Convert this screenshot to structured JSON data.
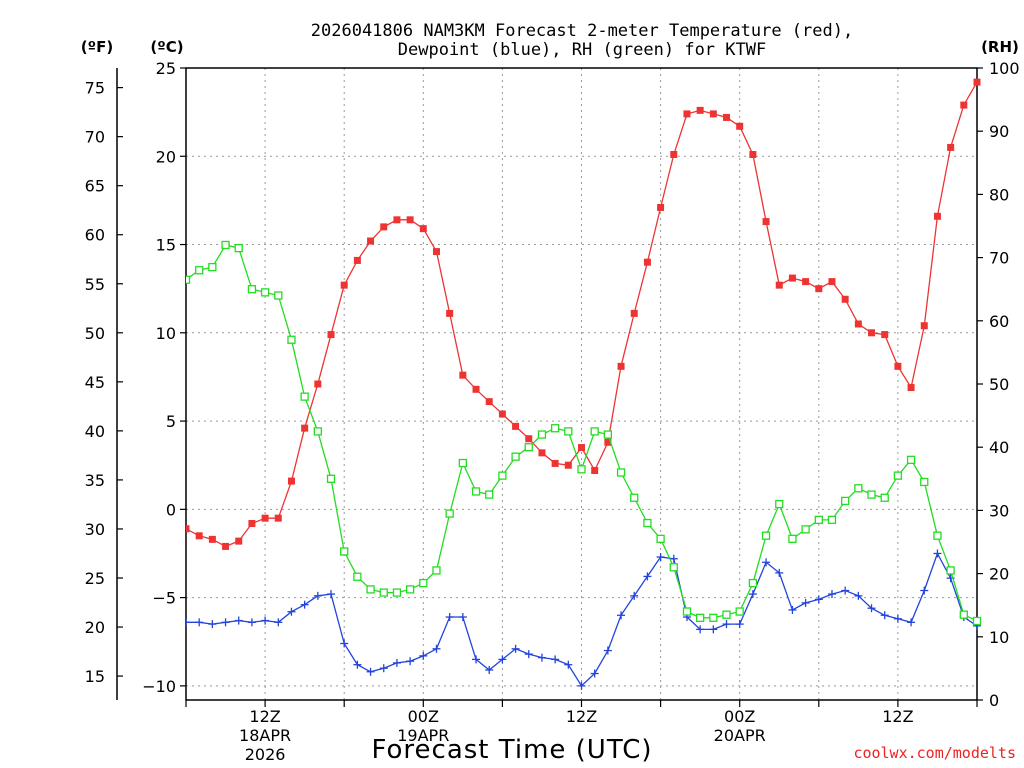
{
  "chart_data": {
    "type": "line",
    "title_line1": "2026041806 NAM3KM Forecast 2-meter Temperature (red),",
    "title_line2": "Dewpoint (blue), RH (green) for KTWF",
    "xlabel": "Forecast Time (UTC)",
    "left_outer_unit": "(ºF)",
    "left_inner_unit": "(ºC)",
    "right_unit": "(RH)",
    "credit": "coolwx.com/modelts",
    "hours": [
      6,
      7,
      8,
      9,
      10,
      11,
      12,
      13,
      14,
      15,
      16,
      17,
      18,
      19,
      20,
      21,
      22,
      23,
      24,
      25,
      26,
      27,
      28,
      29,
      30,
      31,
      32,
      33,
      34,
      35,
      36,
      37,
      38,
      39,
      40,
      41,
      42,
      43,
      44,
      45,
      46,
      47,
      48,
      49,
      50,
      51,
      52,
      53,
      54,
      55,
      56,
      57,
      58,
      59,
      60,
      61,
      62,
      63,
      64,
      65,
      66
    ],
    "xlim": [
      6,
      66
    ],
    "x_ticks": [
      {
        "hour": 12,
        "line1": "12Z",
        "line2": "18APR",
        "line3": "2026"
      },
      {
        "hour": 24,
        "line1": "00Z",
        "line2": "19APR",
        "line3": ""
      },
      {
        "hour": 36,
        "line1": "12Z",
        "line2": "",
        "line3": ""
      },
      {
        "hour": 48,
        "line1": "00Z",
        "line2": "20APR",
        "line3": ""
      },
      {
        "hour": 60,
        "line1": "12Z",
        "line2": "",
        "line3": ""
      }
    ],
    "celsius_axis": {
      "ylim": [
        -10.8,
        25
      ],
      "ticks": [
        "25",
        "20",
        "15",
        "10",
        "5",
        "0",
        "−5",
        "−10"
      ],
      "tick_values": [
        25,
        20,
        15,
        10,
        5,
        0,
        -5,
        -10
      ]
    },
    "fahrenheit_ticks": [
      "75",
      "70",
      "65",
      "60",
      "55",
      "50",
      "45",
      "40",
      "35",
      "30",
      "25",
      "20",
      "15"
    ],
    "fahrenheit_values": [
      75,
      70,
      65,
      60,
      55,
      50,
      45,
      40,
      35,
      30,
      25,
      20,
      15
    ],
    "rh_axis": {
      "ylim": [
        0,
        100
      ],
      "ticks": [
        "100",
        "90",
        "80",
        "70",
        "60",
        "50",
        "40",
        "30",
        "20",
        "10",
        "0"
      ],
      "tick_values": [
        100,
        90,
        80,
        70,
        60,
        50,
        40,
        30,
        20,
        10,
        0
      ]
    },
    "series": [
      {
        "name": "Temperature",
        "color": "#ee3333",
        "axis": "celsius",
        "marker": "filled-square",
        "values": [
          -1.1,
          -1.5,
          -1.7,
          -2.1,
          -1.8,
          -0.8,
          -0.5,
          -0.5,
          1.6,
          4.6,
          7.1,
          9.9,
          12.7,
          14.1,
          15.2,
          16.0,
          16.4,
          16.4,
          15.9,
          14.6,
          11.1,
          7.6,
          6.8,
          6.1,
          5.4,
          4.7,
          4.0,
          3.2,
          2.6,
          2.5,
          3.5,
          2.2,
          3.8,
          8.1,
          11.1,
          14.0,
          17.1,
          20.1,
          22.4,
          22.6,
          22.4,
          22.2,
          21.7,
          20.1,
          16.3,
          12.7,
          13.1,
          12.9,
          12.5,
          12.9,
          11.9,
          10.5,
          10.0,
          9.9,
          8.1,
          6.9,
          10.4,
          16.6,
          20.5,
          22.9,
          24.2
        ]
      },
      {
        "name": "Dewpoint",
        "color": "#2244dd",
        "axis": "celsius",
        "marker": "plus",
        "values": [
          -6.4,
          -6.4,
          -6.5,
          -6.4,
          -6.3,
          -6.4,
          -6.3,
          -6.4,
          -5.8,
          -5.4,
          -4.9,
          -4.8,
          -7.6,
          -8.8,
          -9.2,
          -9.0,
          -8.7,
          -8.6,
          -8.3,
          -7.9,
          -6.1,
          -6.1,
          -8.5,
          -9.1,
          -8.5,
          -7.9,
          -8.2,
          -8.4,
          -8.5,
          -8.8,
          -10.0,
          -9.3,
          -8.0,
          -6.0,
          -4.9,
          -3.8,
          -2.7,
          -2.8,
          -6.1,
          -6.8,
          -6.8,
          -6.5,
          -6.5,
          -4.8,
          -3.0,
          -3.6,
          -5.7,
          -5.3,
          -5.1,
          -4.8,
          -4.6,
          -4.9,
          -5.6,
          -6.0,
          -6.2,
          -6.4,
          -4.6,
          -2.5,
          -3.9,
          -6.1,
          -6.6
        ]
      },
      {
        "name": "RH",
        "color": "#22dd22",
        "axis": "rh",
        "marker": "open-square",
        "values": [
          66.5,
          68,
          68.5,
          72,
          71.5,
          65,
          64.5,
          64,
          57,
          48,
          42.5,
          35,
          23.5,
          19.5,
          17.5,
          17,
          17,
          17.5,
          18.5,
          20.5,
          29.5,
          37.5,
          33,
          32.5,
          35.5,
          38.5,
          40,
          42,
          43,
          42.5,
          36.5,
          42.5,
          42,
          36,
          32,
          28,
          25.5,
          21,
          14,
          13,
          13,
          13.5,
          14,
          18.5,
          26,
          31,
          25.5,
          27,
          28.5,
          28.5,
          31.5,
          33.5,
          32.5,
          32,
          35.5,
          38,
          34.5,
          26,
          20.5,
          13.5,
          12.5
        ]
      }
    ]
  }
}
